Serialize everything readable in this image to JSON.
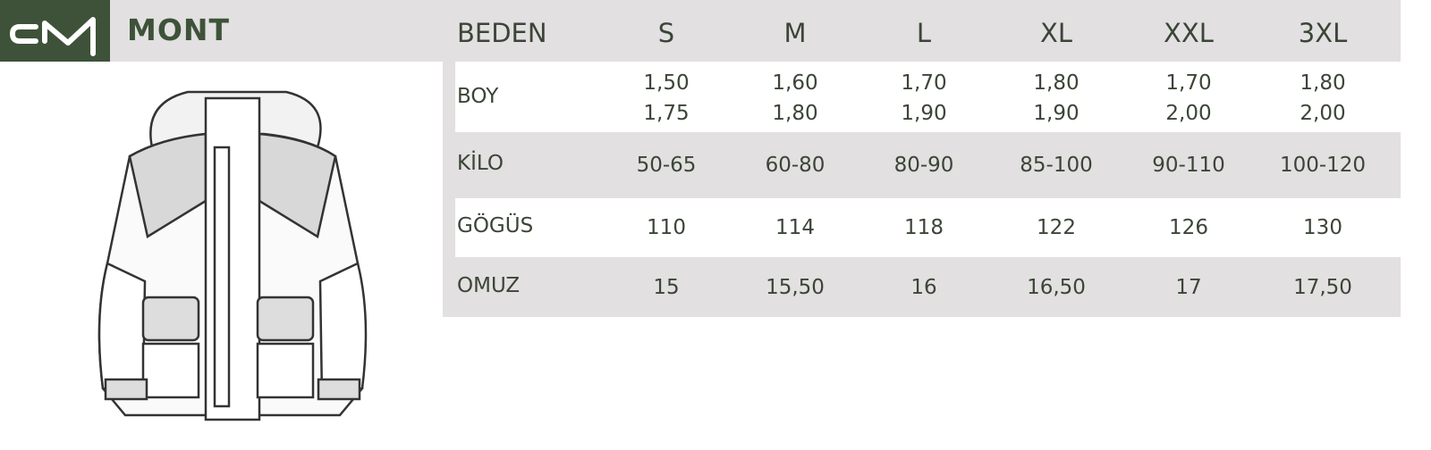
{
  "header": {
    "logo_text": "cM",
    "title": "MONT"
  },
  "table": {
    "corner": "BEDEN",
    "sizes": [
      "S",
      "M",
      "L",
      "XL",
      "XXL",
      "3XL"
    ],
    "rows": [
      {
        "label": "BOY",
        "values": [
          "1,50\n1,75",
          "1,60\n1,80",
          "1,70\n1,90",
          "1,80\n1,90",
          "1,70\n2,00",
          "1,80\n2,00"
        ]
      },
      {
        "label": "KİLO",
        "values": [
          "50-65",
          "60-80",
          "80-90",
          "85-100",
          "90-110",
          "100-120"
        ]
      },
      {
        "label": "GÖGÜS",
        "values": [
          "110",
          "114",
          "118",
          "122",
          "126",
          "130"
        ]
      },
      {
        "label": "OMUZ",
        "values": [
          "15",
          "15,50",
          "16",
          "16,50",
          "17",
          "17,50"
        ]
      }
    ]
  },
  "colors": {
    "brand": "#3e5239",
    "band": "#e2e0e1",
    "text": "#3b4537"
  },
  "image": {
    "icon": "jacket-illustration"
  }
}
